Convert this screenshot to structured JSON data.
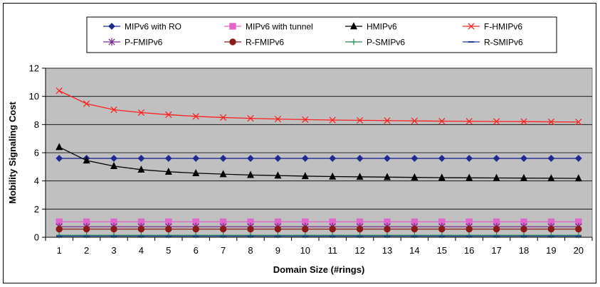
{
  "chart_data": {
    "type": "line",
    "title": "",
    "xlabel": "Domain Size (#rings)",
    "ylabel": "Mobility Signaling Cost",
    "x": [
      1,
      2,
      3,
      4,
      5,
      6,
      7,
      8,
      9,
      10,
      11,
      12,
      13,
      14,
      15,
      16,
      17,
      18,
      19,
      20
    ],
    "ylim": [
      0,
      12
    ],
    "yticks": [
      0,
      2,
      4,
      6,
      8,
      10,
      12
    ],
    "grid": true,
    "legend_position": "top",
    "plot_background": "#c0c0c0",
    "series": [
      {
        "name": "MIPv6 with RO",
        "color": "#1f2a8f",
        "marker": "diamond",
        "values": [
          5.6,
          5.6,
          5.6,
          5.6,
          5.6,
          5.6,
          5.6,
          5.6,
          5.6,
          5.6,
          5.6,
          5.6,
          5.6,
          5.6,
          5.6,
          5.6,
          5.6,
          5.6,
          5.6,
          5.6
        ]
      },
      {
        "name": "MIPv6 with tunnel",
        "color": "#e066cc",
        "marker": "square",
        "values": [
          1.1,
          1.1,
          1.1,
          1.1,
          1.1,
          1.1,
          1.1,
          1.1,
          1.1,
          1.1,
          1.1,
          1.1,
          1.1,
          1.1,
          1.1,
          1.1,
          1.1,
          1.1,
          1.1,
          1.1
        ]
      },
      {
        "name": "HMIPv6",
        "color": "#000000",
        "marker": "triangle",
        "values": [
          6.4,
          5.45,
          5.05,
          4.8,
          4.65,
          4.55,
          4.48,
          4.42,
          4.38,
          4.34,
          4.31,
          4.29,
          4.27,
          4.25,
          4.23,
          4.22,
          4.21,
          4.2,
          4.19,
          4.18
        ]
      },
      {
        "name": "F-HMIPv6",
        "color": "#ff2020",
        "marker": "x",
        "values": [
          10.4,
          9.48,
          9.05,
          8.85,
          8.7,
          8.58,
          8.5,
          8.44,
          8.39,
          8.35,
          8.32,
          8.3,
          8.28,
          8.26,
          8.24,
          8.23,
          8.22,
          8.21,
          8.19,
          8.18
        ]
      },
      {
        "name": "P-FMIPv6",
        "color": "#7a2a8a",
        "marker": "star",
        "values": [
          0.75,
          0.75,
          0.75,
          0.75,
          0.75,
          0.75,
          0.75,
          0.75,
          0.75,
          0.75,
          0.75,
          0.75,
          0.75,
          0.75,
          0.75,
          0.75,
          0.75,
          0.75,
          0.75,
          0.75
        ]
      },
      {
        "name": "R-FMIPv6",
        "color": "#8b1a1a",
        "marker": "circle",
        "values": [
          0.58,
          0.58,
          0.58,
          0.58,
          0.58,
          0.58,
          0.58,
          0.58,
          0.58,
          0.58,
          0.58,
          0.58,
          0.58,
          0.58,
          0.58,
          0.58,
          0.58,
          0.58,
          0.58,
          0.58
        ]
      },
      {
        "name": "P-SMIPv6",
        "color": "#2e8b57",
        "marker": "plus",
        "values": [
          0.14,
          0.14,
          0.14,
          0.14,
          0.14,
          0.14,
          0.14,
          0.14,
          0.14,
          0.14,
          0.14,
          0.14,
          0.14,
          0.14,
          0.14,
          0.14,
          0.14,
          0.14,
          0.14,
          0.14
        ]
      },
      {
        "name": "R-SMIPv6",
        "color": "#1f3f8f",
        "marker": "dash",
        "values": [
          0.08,
          0.08,
          0.08,
          0.08,
          0.08,
          0.08,
          0.08,
          0.08,
          0.08,
          0.08,
          0.08,
          0.08,
          0.08,
          0.08,
          0.08,
          0.08,
          0.08,
          0.08,
          0.08,
          0.08
        ]
      }
    ]
  }
}
